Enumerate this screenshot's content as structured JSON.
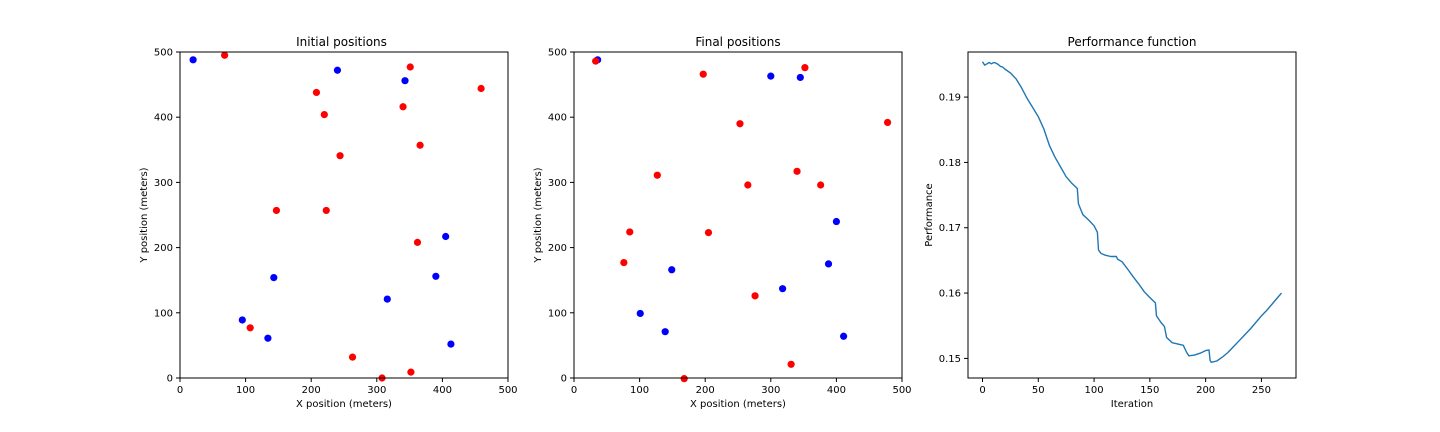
{
  "chart_data": [
    {
      "type": "scatter",
      "title": "Initial positions",
      "xlabel": "X position (meters)",
      "ylabel": "Y position (meters)",
      "xlim": [
        0,
        500
      ],
      "ylim": [
        0,
        500
      ],
      "xticks": [
        "0",
        "100",
        "200",
        "300",
        "400",
        "500"
      ],
      "yticks": [
        "0",
        "100",
        "200",
        "300",
        "400",
        "500"
      ],
      "grid": false,
      "series": [
        {
          "color": "#0000ff",
          "points": [
            [
              20,
              488
            ],
            [
              240,
              472
            ],
            [
              343,
              456
            ],
            [
              405,
              217
            ],
            [
              143,
              154
            ],
            [
              390,
              156
            ],
            [
              316,
              121
            ],
            [
              95,
              89
            ],
            [
              134,
              61
            ],
            [
              413,
              52
            ]
          ]
        },
        {
          "color": "#ff0000",
          "points": [
            [
              68,
              495
            ],
            [
              351,
              477
            ],
            [
              459,
              444
            ],
            [
              208,
              438
            ],
            [
              340,
              416
            ],
            [
              220,
              404
            ],
            [
              366,
              357
            ],
            [
              244,
              341
            ],
            [
              147,
              257
            ],
            [
              223,
              257
            ],
            [
              362,
              208
            ],
            [
              107,
              77
            ],
            [
              263,
              32
            ],
            [
              352,
              9
            ],
            [
              308,
              0
            ]
          ]
        }
      ]
    },
    {
      "type": "scatter",
      "title": "Final positions",
      "xlabel": "X position (meters)",
      "ylabel": "Y position (meters)",
      "xlim": [
        0,
        500
      ],
      "ylim": [
        0,
        500
      ],
      "xticks": [
        "0",
        "100",
        "200",
        "300",
        "400",
        "500"
      ],
      "yticks": [
        "0",
        "100",
        "200",
        "300",
        "400",
        "500"
      ],
      "grid": false,
      "series": [
        {
          "color": "#0000ff",
          "points": [
            [
              36,
              488
            ],
            [
              300,
              463
            ],
            [
              345,
              461
            ],
            [
              400,
              240
            ],
            [
              388,
              175
            ],
            [
              149,
              166
            ],
            [
              318,
              137
            ],
            [
              101,
              99
            ],
            [
              139,
              71
            ],
            [
              411,
              64
            ]
          ]
        },
        {
          "color": "#ff0000",
          "points": [
            [
              33,
              486
            ],
            [
              352,
              476
            ],
            [
              197,
              466
            ],
            [
              478,
              392
            ],
            [
              253,
              390
            ],
            [
              340,
              317
            ],
            [
              127,
              311
            ],
            [
              265,
              296
            ],
            [
              376,
              296
            ],
            [
              85,
              224
            ],
            [
              205,
              223
            ],
            [
              76,
              177
            ],
            [
              276,
              126
            ],
            [
              331,
              21
            ],
            [
              168,
              -1
            ]
          ]
        }
      ]
    },
    {
      "type": "line",
      "title": "Performance function",
      "xlabel": "Iteration",
      "ylabel": "Performance",
      "xlim": [
        -13,
        281
      ],
      "ylim": [
        0.147,
        0.1969
      ],
      "xticks": [
        0,
        50,
        100,
        150,
        200,
        250
      ],
      "yticks": [
        0.15,
        0.16,
        0.17,
        0.18,
        0.19
      ],
      "ytick_labels": [
        "0.15",
        "0.16",
        "0.17",
        "0.18",
        "0.19"
      ],
      "grid": false,
      "series": [
        {
          "color": "#1f77b4",
          "x": [
            0,
            2,
            4,
            6,
            8,
            10,
            12,
            14,
            16,
            18,
            20,
            25,
            30,
            35,
            40,
            45,
            50,
            55,
            60,
            65,
            70,
            75,
            80,
            85,
            86,
            88,
            90,
            95,
            100,
            103,
            104,
            106,
            110,
            115,
            120,
            121,
            125,
            130,
            135,
            140,
            145,
            150,
            155,
            156,
            160,
            163,
            165,
            170,
            180,
            183,
            185,
            190,
            195,
            200,
            203,
            204,
            205,
            210,
            215,
            220,
            225,
            230,
            235,
            240,
            245,
            250,
            255,
            260,
            265,
            268
          ],
          "y": [
            0.1954,
            0.1949,
            0.1951,
            0.1953,
            0.1951,
            0.1953,
            0.1952,
            0.195,
            0.1947,
            0.1946,
            0.1943,
            0.1937,
            0.1928,
            0.1914,
            0.1898,
            0.1884,
            0.187,
            0.1851,
            0.1826,
            0.1808,
            0.1793,
            0.1778,
            0.1768,
            0.176,
            0.1737,
            0.1728,
            0.172,
            0.1712,
            0.1703,
            0.1693,
            0.1666,
            0.1661,
            0.1658,
            0.1656,
            0.1656,
            0.1652,
            0.1648,
            0.1637,
            0.1625,
            0.1614,
            0.1602,
            0.1593,
            0.1585,
            0.1565,
            0.1555,
            0.1549,
            0.1532,
            0.1524,
            0.152,
            0.1509,
            0.1504,
            0.1505,
            0.1508,
            0.1512,
            0.1513,
            0.1497,
            0.1494,
            0.1496,
            0.1502,
            0.1509,
            0.1518,
            0.1527,
            0.1536,
            0.1545,
            0.1555,
            0.1565,
            0.1574,
            0.1584,
            0.1594,
            0.16
          ]
        }
      ]
    }
  ]
}
